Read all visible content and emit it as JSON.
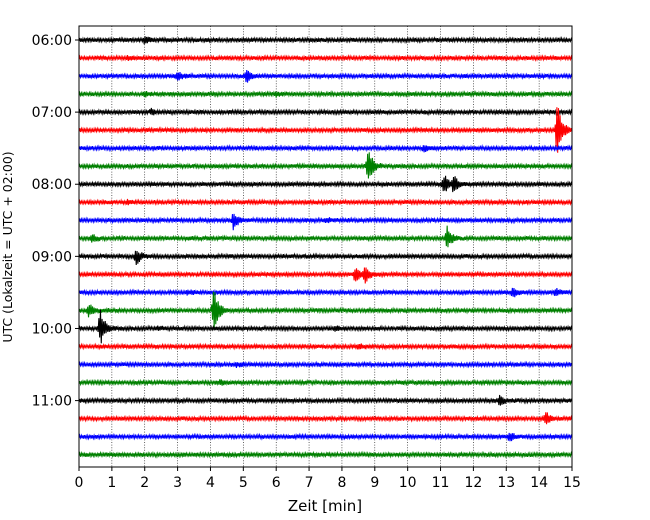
{
  "chart_data": {
    "type": "line",
    "title": "",
    "xlabel": "Zeit  [min]",
    "ylabel": "UTC (Lokalzeit = UTC + 02:00)",
    "xlim": [
      0,
      15
    ],
    "x_ticks": [
      "0",
      "1",
      "2",
      "3",
      "4",
      "5",
      "6",
      "7",
      "8",
      "9",
      "10",
      "11",
      "12",
      "13",
      "14",
      "15"
    ],
    "y_ticks": [
      "06:00",
      "07:00",
      "08:00",
      "09:00",
      "10:00",
      "11:00"
    ],
    "trace_start_times": [
      "06:00",
      "06:15",
      "06:30",
      "06:45",
      "07:00",
      "07:15",
      "07:30",
      "07:45",
      "08:00",
      "08:15",
      "08:30",
      "08:45",
      "09:00",
      "09:15",
      "09:30",
      "09:45",
      "10:00",
      "10:15",
      "10:30",
      "10:45",
      "11:00",
      "11:15",
      "11:30",
      "11:45"
    ],
    "grid": "vertical dotted",
    "legend": "none",
    "series_colors": [
      "#000000",
      "#ff0000",
      "#0000ff",
      "#008000"
    ],
    "events": [
      {
        "trace": 0,
        "x": 2.0,
        "amp": 0.4
      },
      {
        "trace": 1,
        "x": 1.5,
        "amp": 0.2
      },
      {
        "trace": 2,
        "x": 3.0,
        "amp": 0.5
      },
      {
        "trace": 2,
        "x": 5.1,
        "amp": 0.7
      },
      {
        "trace": 3,
        "x": 2.0,
        "amp": 0.2
      },
      {
        "trace": 3,
        "x": 6.0,
        "amp": 0.25
      },
      {
        "trace": 4,
        "x": 2.2,
        "amp": 0.25
      },
      {
        "trace": 5,
        "x": 14.55,
        "amp": 3.2
      },
      {
        "trace": 6,
        "x": 10.5,
        "amp": 0.4
      },
      {
        "trace": 7,
        "x": 8.8,
        "amp": 2.3
      },
      {
        "trace": 8,
        "x": 11.1,
        "amp": 1.2
      },
      {
        "trace": 8,
        "x": 11.4,
        "amp": 0.9
      },
      {
        "trace": 9,
        "x": 1.5,
        "amp": 0.2
      },
      {
        "trace": 10,
        "x": 4.7,
        "amp": 1.0
      },
      {
        "trace": 10,
        "x": 7.5,
        "amp": 0.3
      },
      {
        "trace": 11,
        "x": 0.4,
        "amp": 0.4
      },
      {
        "trace": 11,
        "x": 11.2,
        "amp": 1.3
      },
      {
        "trace": 12,
        "x": 1.75,
        "amp": 0.9
      },
      {
        "trace": 13,
        "x": 8.4,
        "amp": 0.8
      },
      {
        "trace": 13,
        "x": 8.7,
        "amp": 0.9
      },
      {
        "trace": 14,
        "x": 3.3,
        "amp": 0.25
      },
      {
        "trace": 14,
        "x": 13.2,
        "amp": 0.5
      },
      {
        "trace": 14,
        "x": 14.5,
        "amp": 0.4
      },
      {
        "trace": 15,
        "x": 0.3,
        "amp": 0.8
      },
      {
        "trace": 15,
        "x": 4.1,
        "amp": 2.9
      },
      {
        "trace": 16,
        "x": 0.65,
        "amp": 2.2
      },
      {
        "trace": 16,
        "x": 2.4,
        "amp": 0.2
      },
      {
        "trace": 16,
        "x": 7.8,
        "amp": 0.3
      },
      {
        "trace": 17,
        "x": 8.5,
        "amp": 0.3
      },
      {
        "trace": 18,
        "x": 4.8,
        "amp": 0.25
      },
      {
        "trace": 19,
        "x": 4.3,
        "amp": 0.2
      },
      {
        "trace": 20,
        "x": 12.8,
        "amp": 0.5
      },
      {
        "trace": 21,
        "x": 14.2,
        "amp": 0.7
      },
      {
        "trace": 22,
        "x": 13.1,
        "amp": 0.5
      }
    ]
  }
}
